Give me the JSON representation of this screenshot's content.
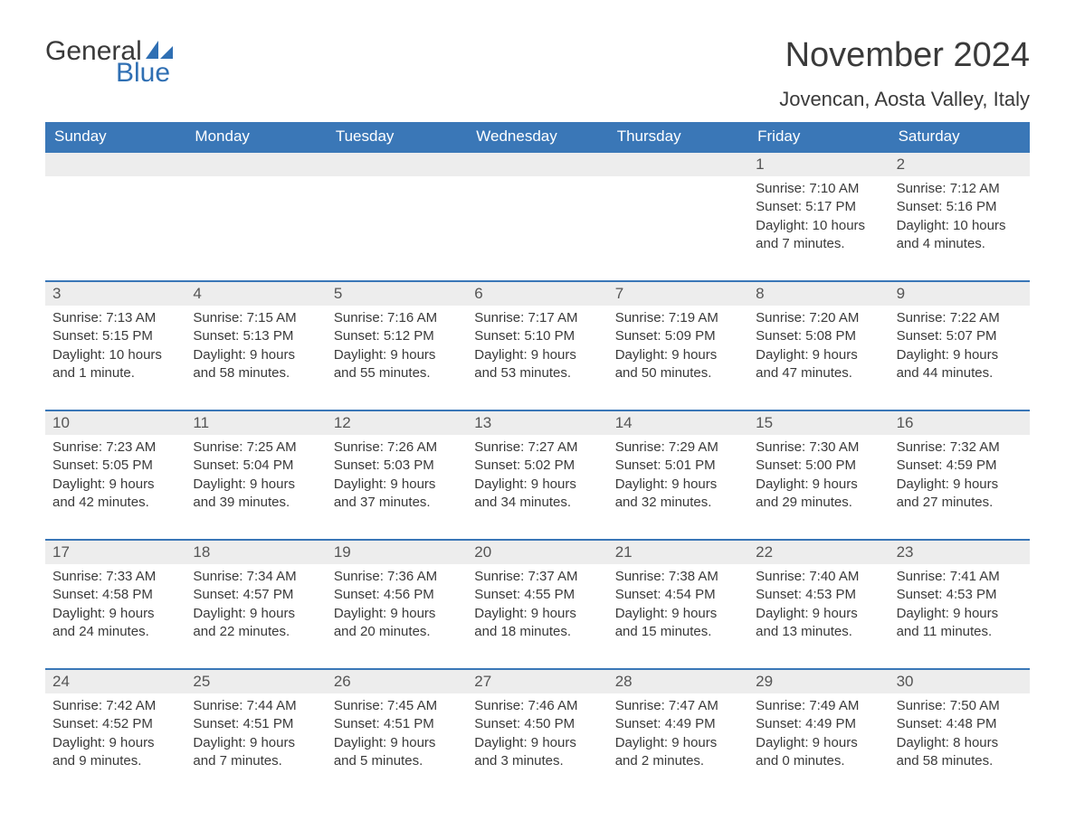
{
  "logo": {
    "text_general": "General",
    "text_blue": "Blue",
    "shape_color": "#2f6fb3"
  },
  "title": "November 2024",
  "location": "Jovencan, Aosta Valley, Italy",
  "colors": {
    "header_bg": "#3a77b7",
    "header_text": "#ffffff",
    "daynum_bg": "#ededed",
    "rule": "#3a77b7",
    "body_text": "#3a3a3a"
  },
  "weekdays": [
    "Sunday",
    "Monday",
    "Tuesday",
    "Wednesday",
    "Thursday",
    "Friday",
    "Saturday"
  ],
  "weeks": [
    [
      null,
      null,
      null,
      null,
      null,
      {
        "n": "1",
        "sunrise": "7:10 AM",
        "sunset": "5:17 PM",
        "daylight": "10 hours and 7 minutes."
      },
      {
        "n": "2",
        "sunrise": "7:12 AM",
        "sunset": "5:16 PM",
        "daylight": "10 hours and 4 minutes."
      }
    ],
    [
      {
        "n": "3",
        "sunrise": "7:13 AM",
        "sunset": "5:15 PM",
        "daylight": "10 hours and 1 minute."
      },
      {
        "n": "4",
        "sunrise": "7:15 AM",
        "sunset": "5:13 PM",
        "daylight": "9 hours and 58 minutes."
      },
      {
        "n": "5",
        "sunrise": "7:16 AM",
        "sunset": "5:12 PM",
        "daylight": "9 hours and 55 minutes."
      },
      {
        "n": "6",
        "sunrise": "7:17 AM",
        "sunset": "5:10 PM",
        "daylight": "9 hours and 53 minutes."
      },
      {
        "n": "7",
        "sunrise": "7:19 AM",
        "sunset": "5:09 PM",
        "daylight": "9 hours and 50 minutes."
      },
      {
        "n": "8",
        "sunrise": "7:20 AM",
        "sunset": "5:08 PM",
        "daylight": "9 hours and 47 minutes."
      },
      {
        "n": "9",
        "sunrise": "7:22 AM",
        "sunset": "5:07 PM",
        "daylight": "9 hours and 44 minutes."
      }
    ],
    [
      {
        "n": "10",
        "sunrise": "7:23 AM",
        "sunset": "5:05 PM",
        "daylight": "9 hours and 42 minutes."
      },
      {
        "n": "11",
        "sunrise": "7:25 AM",
        "sunset": "5:04 PM",
        "daylight": "9 hours and 39 minutes."
      },
      {
        "n": "12",
        "sunrise": "7:26 AM",
        "sunset": "5:03 PM",
        "daylight": "9 hours and 37 minutes."
      },
      {
        "n": "13",
        "sunrise": "7:27 AM",
        "sunset": "5:02 PM",
        "daylight": "9 hours and 34 minutes."
      },
      {
        "n": "14",
        "sunrise": "7:29 AM",
        "sunset": "5:01 PM",
        "daylight": "9 hours and 32 minutes."
      },
      {
        "n": "15",
        "sunrise": "7:30 AM",
        "sunset": "5:00 PM",
        "daylight": "9 hours and 29 minutes."
      },
      {
        "n": "16",
        "sunrise": "7:32 AM",
        "sunset": "4:59 PM",
        "daylight": "9 hours and 27 minutes."
      }
    ],
    [
      {
        "n": "17",
        "sunrise": "7:33 AM",
        "sunset": "4:58 PM",
        "daylight": "9 hours and 24 minutes."
      },
      {
        "n": "18",
        "sunrise": "7:34 AM",
        "sunset": "4:57 PM",
        "daylight": "9 hours and 22 minutes."
      },
      {
        "n": "19",
        "sunrise": "7:36 AM",
        "sunset": "4:56 PM",
        "daylight": "9 hours and 20 minutes."
      },
      {
        "n": "20",
        "sunrise": "7:37 AM",
        "sunset": "4:55 PM",
        "daylight": "9 hours and 18 minutes."
      },
      {
        "n": "21",
        "sunrise": "7:38 AM",
        "sunset": "4:54 PM",
        "daylight": "9 hours and 15 minutes."
      },
      {
        "n": "22",
        "sunrise": "7:40 AM",
        "sunset": "4:53 PM",
        "daylight": "9 hours and 13 minutes."
      },
      {
        "n": "23",
        "sunrise": "7:41 AM",
        "sunset": "4:53 PM",
        "daylight": "9 hours and 11 minutes."
      }
    ],
    [
      {
        "n": "24",
        "sunrise": "7:42 AM",
        "sunset": "4:52 PM",
        "daylight": "9 hours and 9 minutes."
      },
      {
        "n": "25",
        "sunrise": "7:44 AM",
        "sunset": "4:51 PM",
        "daylight": "9 hours and 7 minutes."
      },
      {
        "n": "26",
        "sunrise": "7:45 AM",
        "sunset": "4:51 PM",
        "daylight": "9 hours and 5 minutes."
      },
      {
        "n": "27",
        "sunrise": "7:46 AM",
        "sunset": "4:50 PM",
        "daylight": "9 hours and 3 minutes."
      },
      {
        "n": "28",
        "sunrise": "7:47 AM",
        "sunset": "4:49 PM",
        "daylight": "9 hours and 2 minutes."
      },
      {
        "n": "29",
        "sunrise": "7:49 AM",
        "sunset": "4:49 PM",
        "daylight": "9 hours and 0 minutes."
      },
      {
        "n": "30",
        "sunrise": "7:50 AM",
        "sunset": "4:48 PM",
        "daylight": "8 hours and 58 minutes."
      }
    ]
  ],
  "labels": {
    "sunrise": "Sunrise: ",
    "sunset": "Sunset: ",
    "daylight": "Daylight: "
  }
}
